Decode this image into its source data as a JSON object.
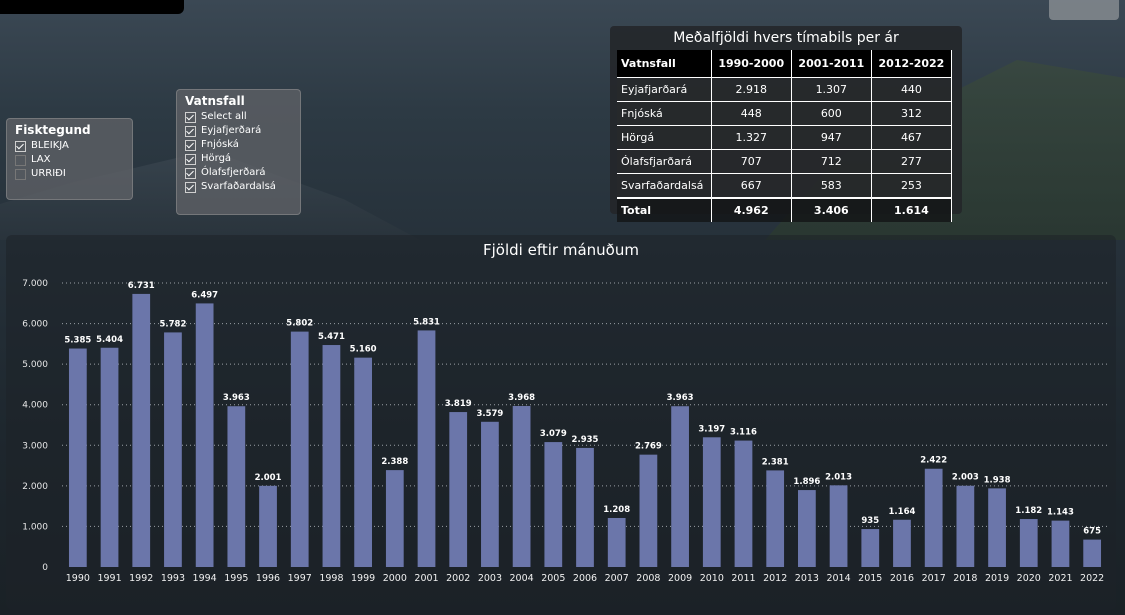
{
  "slicer_fisktegund": {
    "title": "Fisktegund",
    "items": [
      {
        "label": "BLEIKJA",
        "checked": true
      },
      {
        "label": "LAX",
        "checked": false
      },
      {
        "label": "URRIÐI",
        "checked": false
      }
    ]
  },
  "slicer_vatnsfall": {
    "title": "Vatnsfall",
    "items": [
      {
        "label": "Select all",
        "checked": true
      },
      {
        "label": "Eyjafjerðará",
        "checked": true
      },
      {
        "label": "Fnjóská",
        "checked": true
      },
      {
        "label": "Hörgá",
        "checked": true
      },
      {
        "label": "Ólafsfjerðará",
        "checked": true
      },
      {
        "label": "Svarfaðardalsá",
        "checked": true
      }
    ]
  },
  "table": {
    "title": "Meðalfjöldi hvers tímabils per ár",
    "headers": [
      "Vatnsfall",
      "1990-2000",
      "2001-2011",
      "2012-2022"
    ],
    "rows": [
      [
        "Eyjafjarðará",
        "2.918",
        "1.307",
        "440"
      ],
      [
        "Fnjóská",
        "448",
        "600",
        "312"
      ],
      [
        "Hörgá",
        "1.327",
        "947",
        "467"
      ],
      [
        "Ólafsfjarðará",
        "707",
        "712",
        "277"
      ],
      [
        "Svarfaðardalsá",
        "667",
        "583",
        "253"
      ]
    ],
    "total": [
      "Total",
      "4.962",
      "3.406",
      "1.614"
    ]
  },
  "chart_data": {
    "type": "bar",
    "title": "Fjöldi eftir mánuðum",
    "categories": [
      "1990",
      "1991",
      "1992",
      "1993",
      "1994",
      "1995",
      "1996",
      "1997",
      "1998",
      "1999",
      "2000",
      "2001",
      "2002",
      "2003",
      "2004",
      "2005",
      "2006",
      "2007",
      "2008",
      "2009",
      "2010",
      "2011",
      "2012",
      "2013",
      "2014",
      "2015",
      "2016",
      "2017",
      "2018",
      "2019",
      "2020",
      "2021",
      "2022"
    ],
    "values": [
      5385,
      5404,
      6731,
      5782,
      6497,
      3963,
      2001,
      5802,
      5471,
      5160,
      2388,
      5831,
      3819,
      3579,
      3968,
      3079,
      2935,
      1208,
      2769,
      3963,
      3197,
      3116,
      2381,
      1896,
      2013,
      935,
      1164,
      2422,
      2003,
      1938,
      1182,
      1143,
      675
    ],
    "value_labels": [
      "5.385",
      "5.404",
      "6.731",
      "5.782",
      "6.497",
      "3.963",
      "2.001",
      "5.802",
      "5.471",
      "5.160",
      "2.388",
      "5.831",
      "3.819",
      "3.579",
      "3.968",
      "3.079",
      "2.935",
      "1.208",
      "2.769",
      "3.963",
      "3.197",
      "3.116",
      "2.381",
      "1.896",
      "2.013",
      "935",
      "1.164",
      "2.422",
      "2.003",
      "1.938",
      "1.182",
      "1.143",
      "675"
    ],
    "yticks": [
      0,
      1000,
      2000,
      3000,
      4000,
      5000,
      6000,
      7000
    ],
    "ytick_labels": [
      "0",
      "1.000",
      "2.000",
      "3.000",
      "4.000",
      "5.000",
      "6.000",
      "7.000"
    ],
    "ylim": [
      0,
      7000
    ],
    "grid": true,
    "bar_color": "#6b76aa"
  }
}
